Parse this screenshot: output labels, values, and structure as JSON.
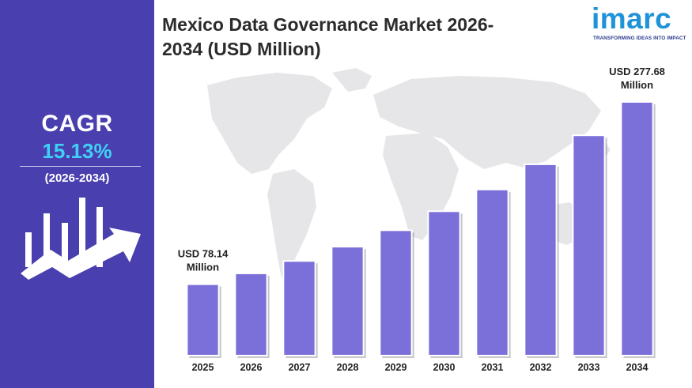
{
  "sidebar": {
    "cagr_label": "CAGR",
    "cagr_value": "15.13%",
    "cagr_period": "(2026-2034)",
    "icon": "bar-growth-arrow-icon",
    "background": "#4a3fae",
    "value_color": "#3fd0f5"
  },
  "logo": {
    "word": "imarc",
    "tagline": "TRANSFORMING IDEAS INTO IMPACT"
  },
  "chart_data": {
    "type": "bar",
    "title": "Mexico Data Governance Market 2026-2034 (USD Million)",
    "categories": [
      "2025",
      "2026",
      "2027",
      "2028",
      "2029",
      "2030",
      "2031",
      "2032",
      "2033",
      "2034"
    ],
    "values": [
      78.14,
      90.0,
      103.6,
      119.2,
      137.2,
      158.0,
      181.8,
      209.4,
      241.1,
      277.68
    ],
    "ylim": [
      0,
      320
    ],
    "grid": false,
    "legend": "none",
    "bar_color": "#7b6fd9",
    "annotations": [
      {
        "category": "2025",
        "line1": "USD 78.14",
        "line2": "Million"
      },
      {
        "category": "2034",
        "line1": "USD 277.68",
        "line2": "Million"
      }
    ]
  }
}
